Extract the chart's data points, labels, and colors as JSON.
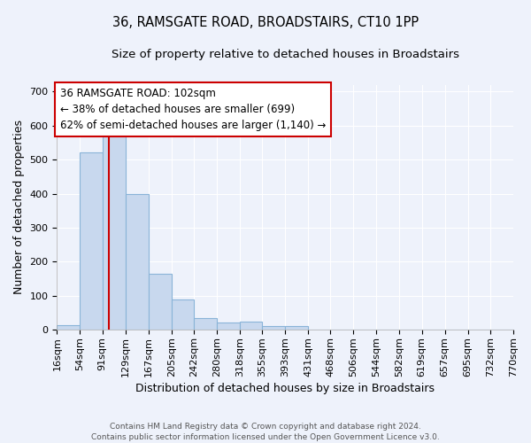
{
  "title1": "36, RAMSGATE ROAD, BROADSTAIRS, CT10 1PP",
  "title2": "Size of property relative to detached houses in Broadstairs",
  "xlabel": "Distribution of detached houses by size in Broadstairs",
  "ylabel": "Number of detached properties",
  "footer1": "Contains HM Land Registry data © Crown copyright and database right 2024.",
  "footer2": "Contains public sector information licensed under the Open Government Licence v3.0.",
  "bin_edges": [
    16,
    54,
    91,
    129,
    167,
    205,
    242,
    280,
    318,
    355,
    393,
    431,
    468,
    506,
    544,
    582,
    619,
    657,
    695,
    732,
    770
  ],
  "bar_heights": [
    15,
    522,
    582,
    400,
    165,
    88,
    35,
    22,
    25,
    12,
    12,
    2,
    0,
    0,
    0,
    0,
    0,
    0,
    0,
    0
  ],
  "bar_fill_color": "#c8d8ee",
  "bar_edge_color": "#8ab4d8",
  "vline_x": 102,
  "vline_color": "#cc0000",
  "annotation_text": "36 RAMSGATE ROAD: 102sqm\n← 38% of detached houses are smaller (699)\n62% of semi-detached houses are larger (1,140) →",
  "annotation_box_facecolor": "#ffffff",
  "annotation_box_edgecolor": "#cc0000",
  "ylim": [
    0,
    720
  ],
  "yticks": [
    0,
    100,
    200,
    300,
    400,
    500,
    600,
    700
  ],
  "bg_color": "#eef2fb",
  "grid_color": "#ffffff",
  "title1_fontsize": 10.5,
  "title2_fontsize": 9.5,
  "axis_label_fontsize": 9,
  "tick_fontsize": 8,
  "footer_fontsize": 6.5
}
